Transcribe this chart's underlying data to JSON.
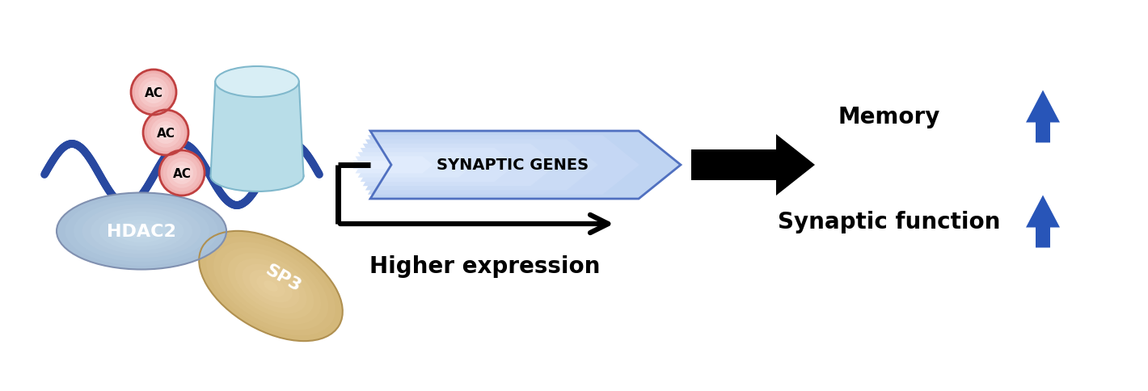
{
  "background_color": "#ffffff",
  "hdac2_color": "#a8c0d8",
  "hdac2_color2": "#c8dcea",
  "hdac2_edge_color": "#8090b0",
  "sp3_color": "#d4b87a",
  "sp3_color2": "#e8d0a0",
  "sp3_edge_color": "#b09050",
  "ac_fill_color": "#f0b0b0",
  "ac_fill_color2": "#ffd8d8",
  "ac_edge_color": "#c04040",
  "histone_color": "#b8dde8",
  "histone_color2": "#d8eef5",
  "histone_edge_color": "#80b8cc",
  "dna_color": "#2848a0",
  "synaptic_box_color": "#c0d0f0",
  "synaptic_box_color2": "#e0eaff",
  "synaptic_box_edge": "#5070c0",
  "arrow_black": "#000000",
  "arrow_blue": "#2855b8",
  "text_black": "#000000",
  "text_white": "#ffffff",
  "hdac2_label": "HDAC2",
  "sp3_label": "SP3",
  "ac_label": "AC",
  "synaptic_label": "SYNAPTIC GENES",
  "higher_expr_label": "Higher expression",
  "synaptic_func_label": "Synaptic function",
  "memory_label": "Memory",
  "fig_width": 14.2,
  "fig_height": 4.85,
  "dpi": 100
}
